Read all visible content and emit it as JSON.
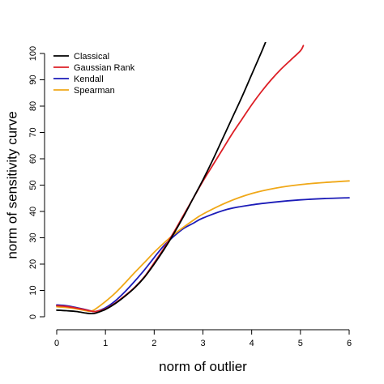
{
  "chart_data": {
    "type": "line",
    "title": "",
    "xlabel": "norm of outlier",
    "ylabel": "norm of sensitivity curve",
    "xlim": [
      0,
      6
    ],
    "ylim": [
      0,
      100
    ],
    "x_ticks": [
      "0",
      "1",
      "2",
      "3",
      "4",
      "5",
      "6"
    ],
    "y_ticks": [
      "0",
      "10",
      "20",
      "30",
      "40",
      "50",
      "60",
      "70",
      "80",
      "90",
      "100"
    ],
    "grid": false,
    "legend_position": "top-left",
    "series": [
      {
        "name": "Classical",
        "color": "#000000",
        "x": [
          0,
          0.2,
          0.4,
          0.6,
          0.7,
          0.8,
          1.0,
          1.2,
          1.4,
          1.6,
          1.8,
          2.0,
          2.2,
          2.4,
          2.6,
          2.8,
          3.0,
          3.2,
          3.4,
          3.6,
          3.8,
          4.0,
          4.2,
          4.3
        ],
        "y": [
          2.5,
          2.3,
          2.0,
          1.4,
          1.2,
          1.4,
          2.8,
          5.0,
          7.8,
          11.0,
          15.0,
          20.0,
          25.5,
          31.5,
          38.0,
          45.0,
          52.0,
          59.5,
          67.5,
          75.5,
          83.5,
          92.0,
          100.5,
          105.0
        ]
      },
      {
        "name": "Gaussian Rank",
        "color": "#dd1f26",
        "x": [
          0,
          0.2,
          0.4,
          0.6,
          0.7,
          0.8,
          1.0,
          1.2,
          1.4,
          1.6,
          1.8,
          2.0,
          2.2,
          2.4,
          2.6,
          2.8,
          3.0,
          3.2,
          3.4,
          3.6,
          3.8,
          4.0,
          4.2,
          4.4,
          4.6,
          4.8,
          5.0,
          5.06
        ],
        "y": [
          4.2,
          3.9,
          3.3,
          2.6,
          2.2,
          2.0,
          3.0,
          5.2,
          8.0,
          11.2,
          15.2,
          20.5,
          26.0,
          32.0,
          38.5,
          45.0,
          51.5,
          57.5,
          63.5,
          69.5,
          75.0,
          80.5,
          85.5,
          90.0,
          94.0,
          97.5,
          101.0,
          103.0
        ]
      },
      {
        "name": "Kendall",
        "color": "#1c1cb8",
        "x": [
          0,
          0.2,
          0.4,
          0.6,
          0.7,
          0.8,
          1.0,
          1.2,
          1.4,
          1.6,
          1.8,
          2.0,
          2.2,
          2.4,
          2.6,
          2.8,
          3.0,
          3.5,
          4.0,
          4.5,
          5.0,
          5.5,
          6.0
        ],
        "y": [
          4.5,
          4.2,
          3.5,
          2.7,
          2.2,
          2.0,
          3.4,
          6.0,
          9.5,
          13.5,
          17.8,
          22.5,
          27.0,
          30.5,
          33.5,
          35.5,
          37.5,
          40.8,
          42.5,
          43.6,
          44.4,
          44.9,
          45.2
        ]
      },
      {
        "name": "Spearman",
        "color": "#f0a818",
        "x": [
          0,
          0.2,
          0.4,
          0.6,
          0.7,
          0.8,
          1.0,
          1.2,
          1.4,
          1.6,
          1.8,
          2.0,
          2.2,
          2.4,
          2.6,
          2.8,
          3.0,
          3.5,
          4.0,
          4.5,
          5.0,
          5.5,
          6.0
        ],
        "y": [
          3.8,
          3.5,
          3.0,
          2.3,
          2.1,
          3.0,
          5.8,
          9.0,
          12.8,
          16.8,
          20.6,
          24.5,
          28.0,
          31.2,
          34.0,
          36.6,
          39.0,
          43.5,
          46.8,
          48.9,
          50.2,
          51.0,
          51.6
        ]
      }
    ]
  }
}
